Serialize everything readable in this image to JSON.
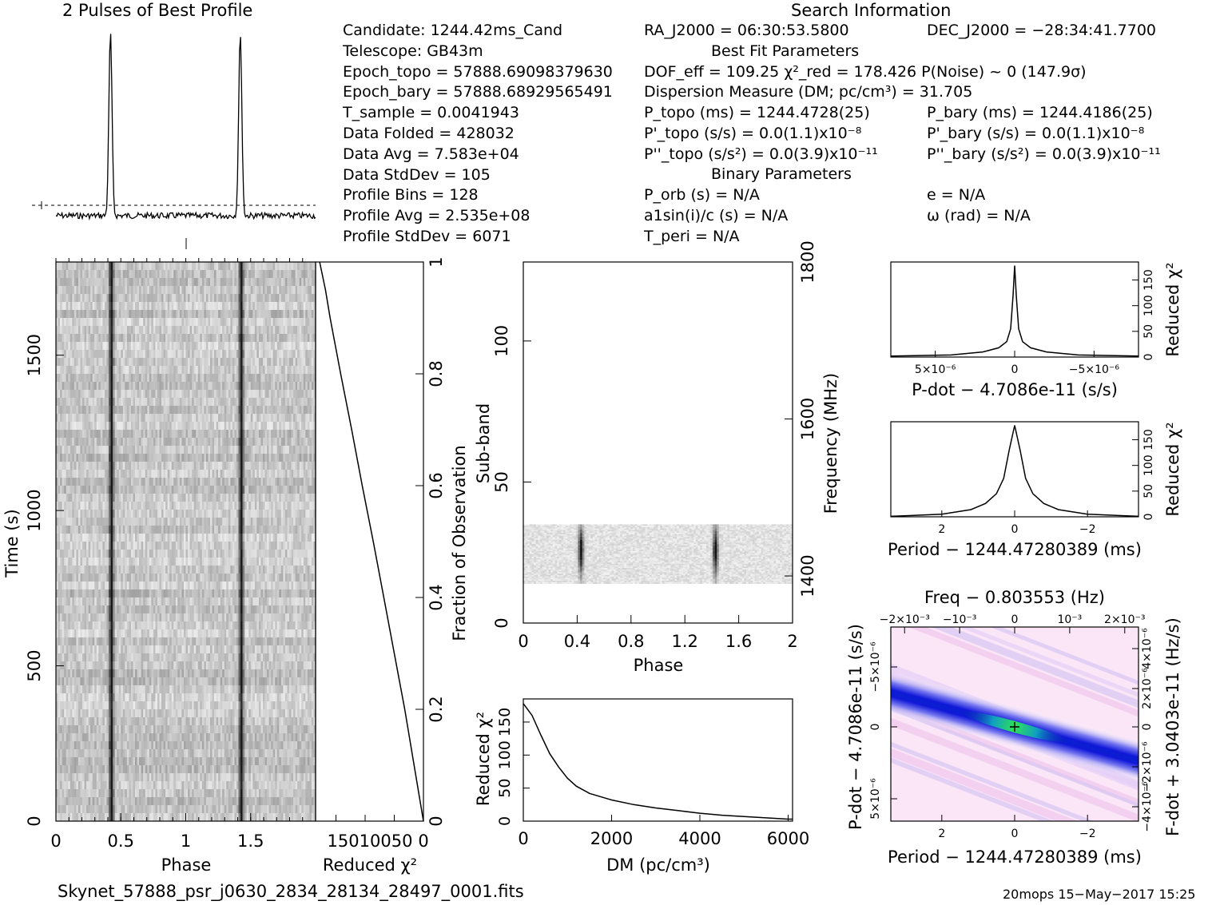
{
  "profile_title": "2 Pulses of Best Profile",
  "search_title": "Search Information",
  "candidate_lines": [
    "Candidate:  1244.42ms_Cand",
    "Telescope:  GB43m",
    "Epoch_topo = 57888.69098379630",
    "Epoch_bary = 57888.68929565491",
    "T_sample         =  0.0041943",
    "Data Folded      =  428032",
    "Data Avg         =  7.583e+04",
    "Data StdDev      =  105",
    "Profile Bins     =  128",
    "Profile Avg      =  2.535e+08",
    "Profile StdDev   =  6071"
  ],
  "search_lines": {
    "ra": "RA_J2000 = 06:30:53.5800",
    "dec": "DEC_J2000 = −28:34:41.7700",
    "best_fit_header": "Best Fit Parameters",
    "dof": "DOF_eff = 109.25   χ²_red = 178.426   P(Noise) ~ 0   (147.9σ)",
    "dm": "Dispersion Measure (DM; pc/cm³) = 31.705",
    "p_topo": "P_topo (ms) =  1244.4728(25)",
    "p_bary": "P_bary (ms) =  1244.4186(25)",
    "pd_topo": "P'_topo (s/s) = 0.0(1.1)x10⁻⁸",
    "pd_bary": "P'_bary (s/s) = 0.0(1.1)x10⁻⁸",
    "pdd_topo": "P''_topo (s/s²) = 0.0(3.9)x10⁻¹¹",
    "pdd_bary": "P''_bary (s/s²) = 0.0(3.9)x10⁻¹¹",
    "binary_header": "Binary Parameters",
    "p_orb": "P_orb (s) = N/A",
    "e": "e = N/A",
    "a1": "a1sin(i)/c (s) = N/A",
    "omega": "ω (rad) = N/A",
    "t_peri": "T_peri = N/A"
  },
  "footer_left": "Skynet_57888_psr_j0630_2834_28134_28497_0001.fits",
  "footer_right": "20mops 15−May−2017 15:25",
  "chart_data": [
    {
      "type": "line",
      "name": "profile",
      "title": "2 Pulses of Best Profile",
      "x": [
        0.0,
        0.35,
        0.38,
        0.41,
        0.43,
        0.46,
        0.5,
        1.0,
        1.35,
        1.38,
        1.41,
        1.43,
        1.46,
        1.5,
        2.0
      ],
      "y": [
        0.0,
        0.0,
        0.35,
        1.0,
        0.85,
        0.1,
        0.0,
        0.0,
        0.0,
        0.35,
        1.0,
        0.85,
        0.1,
        0.0,
        0.0
      ],
      "peak_phases": [
        0.42,
        1.42
      ]
    },
    {
      "type": "heatmap",
      "name": "time-phase",
      "xlabel": "Phase",
      "ylabel": "Time (s)",
      "x_ticks": [
        "0",
        "0.5",
        "1",
        "1.5"
      ],
      "y_ticks": [
        "0",
        "500",
        "1000",
        "1500"
      ],
      "xlim": [
        0,
        2
      ],
      "ylim": [
        0,
        1800
      ],
      "pulse_phases": [
        0.42,
        1.42
      ]
    },
    {
      "type": "line",
      "name": "chi2-vs-time",
      "xlabel": "Reduced χ²",
      "ylabel": "Fraction of Observation",
      "x_ticks": [
        "150",
        "100",
        "50",
        "0"
      ],
      "y_ticks": [
        "0",
        "0.2",
        "0.4",
        "0.6",
        "0.8",
        "1"
      ],
      "fraction": [
        0,
        0.1,
        0.2,
        0.3,
        0.4,
        0.5,
        0.6,
        0.7,
        0.8,
        0.9,
        0.95,
        1.0
      ],
      "chi2": [
        0,
        16,
        32,
        50,
        68,
        86,
        105,
        123,
        142,
        160,
        168,
        178
      ]
    },
    {
      "type": "heatmap",
      "name": "subband-phase",
      "xlabel": "Phase",
      "ylabel": "Sub-band",
      "y2label": "Frequency (MHz)",
      "x_ticks": [
        "0",
        "0.4",
        "0.8",
        "1.2",
        "1.6",
        "2"
      ],
      "y_ticks": [
        "0",
        "50",
        "100"
      ],
      "y2_ticks": [
        "1400",
        "1600",
        "1800"
      ],
      "xlim": [
        0,
        2
      ],
      "ylim": [
        0,
        128
      ],
      "active_subbands": [
        14,
        35
      ],
      "pulse_phases": [
        0.42,
        1.42
      ]
    },
    {
      "type": "line",
      "name": "chi2-vs-dm",
      "xlabel": "DM (pc/cm³)",
      "ylabel": "Reduced χ²",
      "x_ticks": [
        "0",
        "2000",
        "4000",
        "6000"
      ],
      "y_ticks": [
        "0",
        "50",
        "100",
        "150"
      ],
      "xlim": [
        0,
        6100
      ],
      "ylim": [
        0,
        185
      ],
      "x": [
        0,
        200,
        400,
        600,
        800,
        1000,
        1200,
        1500,
        2000,
        2500,
        3000,
        3500,
        4000,
        4500,
        5000,
        5500,
        6000,
        6100
      ],
      "y": [
        178,
        160,
        130,
        102,
        82,
        65,
        53,
        42,
        32,
        25,
        20,
        16,
        12,
        9,
        7,
        5,
        3,
        3
      ]
    },
    {
      "type": "line",
      "name": "chi2-vs-pdot",
      "xlabel": "P-dot − 4.7086e-11 (s/s)",
      "ylabel": "Reduced χ²",
      "x_ticks": [
        "5×10⁻⁶",
        "0",
        "−5×10⁻⁶"
      ],
      "y_ticks": [
        "0",
        "50",
        "100",
        "150"
      ],
      "x": [
        7.8,
        4,
        2,
        1,
        0.5,
        0.25,
        0.1,
        0,
        -0.1,
        -0.25,
        -0.5,
        -1,
        -2,
        -4,
        -7.8
      ],
      "y": [
        2,
        4,
        10,
        18,
        30,
        55,
        120,
        178,
        120,
        55,
        30,
        18,
        10,
        4,
        2
      ]
    },
    {
      "type": "line",
      "name": "chi2-vs-period",
      "xlabel": "Period − 1244.47280389 (ms)",
      "ylabel": "Reduced χ²",
      "x_ticks": [
        "2",
        "0",
        "−2"
      ],
      "y_ticks": [
        "0",
        "50",
        "100",
        "150"
      ],
      "x": [
        3.4,
        2,
        1.2,
        0.8,
        0.5,
        0.3,
        0.15,
        0,
        -0.15,
        -0.3,
        -0.5,
        -0.8,
        -1.2,
        -2,
        -3.4
      ],
      "y": [
        1,
        5,
        14,
        26,
        45,
        75,
        130,
        178,
        130,
        75,
        45,
        26,
        14,
        5,
        1
      ]
    },
    {
      "type": "heatmap",
      "name": "period-pdot",
      "title": "Freq − 0.803553 (Hz)",
      "xlabel": "Period − 1244.47280389 (ms)",
      "ylabel": "P-dot − 4.7086e-11 (s/s)",
      "y2label": "F-dot + 3.0403e-11 (Hz/s)",
      "x_ticks": [
        "2",
        "0",
        "−2"
      ],
      "top_ticks": [
        "−2×10⁻³",
        "−10⁻³",
        "0",
        "10⁻³",
        "2×10⁻³"
      ],
      "y_ticks": [
        "5×10⁻⁶",
        "0",
        "−5×10⁻⁶"
      ],
      "y2_ticks": [
        "−4×10⁻⁶",
        "−2×10⁻⁶",
        "0",
        "2×10⁻⁶",
        "4×10⁻⁶"
      ],
      "best_fit": [
        0,
        0
      ]
    }
  ]
}
